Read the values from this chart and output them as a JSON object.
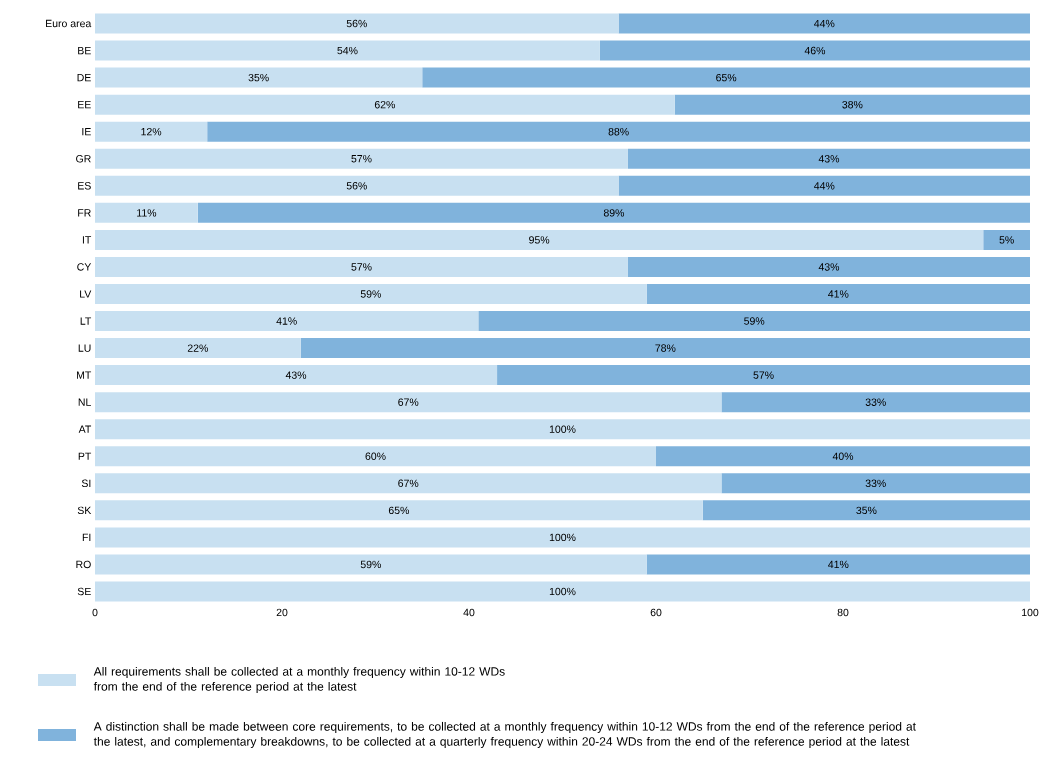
{
  "chart_data": {
    "type": "bar",
    "orientation": "horizontal",
    "stacked": true,
    "categories": [
      "Euro area",
      "BE",
      "DE",
      "EE",
      "IE",
      "GR",
      "ES",
      "FR",
      "IT",
      "CY",
      "LV",
      "LT",
      "LU",
      "MT",
      "NL",
      "AT",
      "PT",
      "SI",
      "SK",
      "FI",
      "RO",
      "SE"
    ],
    "series": [
      {
        "name": "All requirements shall be collected at a monthly frequency within 10-12 WDs from the end of the reference period at the latest",
        "color": "#c8e0f1",
        "values": [
          56,
          54,
          35,
          62,
          12,
          57,
          56,
          11,
          95,
          57,
          59,
          41,
          22,
          43,
          67,
          100,
          60,
          67,
          65,
          100,
          59,
          100
        ],
        "value_labels": [
          "56%",
          "54%",
          "35%",
          "62%",
          "12%",
          "57%",
          "56%",
          "11%",
          "95%",
          "57%",
          "59%",
          "41%",
          "22%",
          "43%",
          "67%",
          "100%",
          "60%",
          "67%",
          "65%",
          "100%",
          "59%",
          "100%"
        ]
      },
      {
        "name": "A distinction shall be made between core requirements, to be collected at a monthly frequency within 10-12 WDs from the end of the reference period at the latest, and complementary breakdowns, to be collected at a quarterly frequency within 20-24 WDs from the end of the reference period at the latest",
        "color": "#80b3dc",
        "values": [
          44,
          46,
          65,
          38,
          88,
          43,
          44,
          89,
          5,
          43,
          41,
          59,
          78,
          57,
          33,
          0,
          40,
          33,
          35,
          0,
          41,
          0
        ],
        "value_labels": [
          "44%",
          "46%",
          "65%",
          "38%",
          "88%",
          "43%",
          "44%",
          "89%",
          "5%",
          "43%",
          "41%",
          "59%",
          "78%",
          "57%",
          "33%",
          null,
          "40%",
          "33%",
          "35%",
          null,
          "41%",
          null
        ]
      }
    ],
    "xlim": [
      0,
      100
    ],
    "xticks": [
      0,
      20,
      40,
      60,
      80,
      100
    ],
    "grid": false,
    "legend": "bottom"
  }
}
